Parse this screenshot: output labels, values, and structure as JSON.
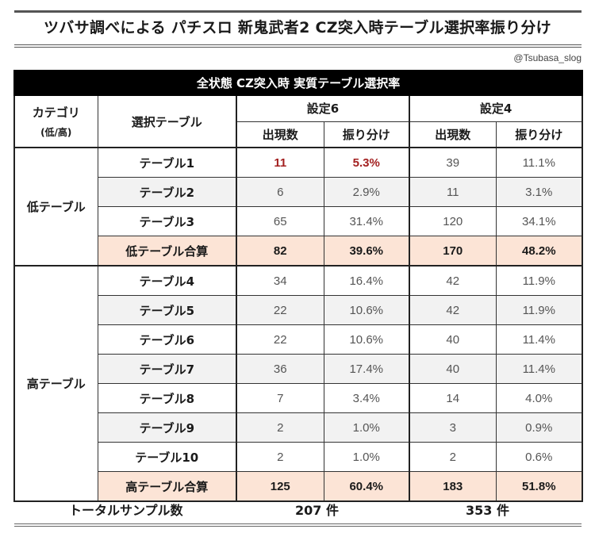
{
  "title": "ツバサ調べによる パチスロ 新鬼武者2 CZ突入時テーブル選択率振り分け",
  "credit": "@Tsubasa_slog",
  "table": {
    "banner": "全状態 CZ突入時 実質テーブル選択率",
    "headers": {
      "category": "カテゴリ",
      "category_sub": "(低/高)",
      "table_select": "選択テーブル",
      "setting6": "設定6",
      "setting4": "設定4",
      "count": "出現数",
      "ratio": "振り分け"
    },
    "low_group": {
      "label": "低テーブル",
      "rows": [
        {
          "name": "テーブル1",
          "s6_count": "11",
          "s6_ratio": "5.3%",
          "s4_count": "39",
          "s4_ratio": "11.1%"
        },
        {
          "name": "テーブル2",
          "s6_count": "6",
          "s6_ratio": "2.9%",
          "s4_count": "11",
          "s4_ratio": "3.1%"
        },
        {
          "name": "テーブル3",
          "s6_count": "65",
          "s6_ratio": "31.4%",
          "s4_count": "120",
          "s4_ratio": "34.1%"
        }
      ],
      "sum": {
        "name": "低テーブル合算",
        "s6_count": "82",
        "s6_ratio": "39.6%",
        "s4_count": "170",
        "s4_ratio": "48.2%"
      }
    },
    "high_group": {
      "label": "高テーブル",
      "rows": [
        {
          "name": "テーブル4",
          "s6_count": "34",
          "s6_ratio": "16.4%",
          "s4_count": "42",
          "s4_ratio": "11.9%"
        },
        {
          "name": "テーブル5",
          "s6_count": "22",
          "s6_ratio": "10.6%",
          "s4_count": "42",
          "s4_ratio": "11.9%"
        },
        {
          "name": "テーブル6",
          "s6_count": "22",
          "s6_ratio": "10.6%",
          "s4_count": "40",
          "s4_ratio": "11.4%"
        },
        {
          "name": "テーブル7",
          "s6_count": "36",
          "s6_ratio": "17.4%",
          "s4_count": "40",
          "s4_ratio": "11.4%"
        },
        {
          "name": "テーブル8",
          "s6_count": "7",
          "s6_ratio": "3.4%",
          "s4_count": "14",
          "s4_ratio": "4.0%"
        },
        {
          "name": "テーブル9",
          "s6_count": "2",
          "s6_ratio": "1.0%",
          "s4_count": "3",
          "s4_ratio": "0.9%"
        },
        {
          "name": "テーブル10",
          "s6_count": "2",
          "s6_ratio": "1.0%",
          "s4_count": "2",
          "s4_ratio": "0.6%"
        }
      ],
      "sum": {
        "name": "高テーブル合算",
        "s6_count": "125",
        "s6_ratio": "60.4%",
        "s4_count": "183",
        "s4_ratio": "51.8%"
      }
    }
  },
  "totals": {
    "label": "トータルサンプル数",
    "s6": "207 件",
    "s4": "353 件"
  },
  "colors": {
    "highlight_text": "#a32020",
    "sum_row_bg": "#fce4d6",
    "alt_row_bg": "#f2f2f2",
    "banner_bg": "#000000"
  }
}
